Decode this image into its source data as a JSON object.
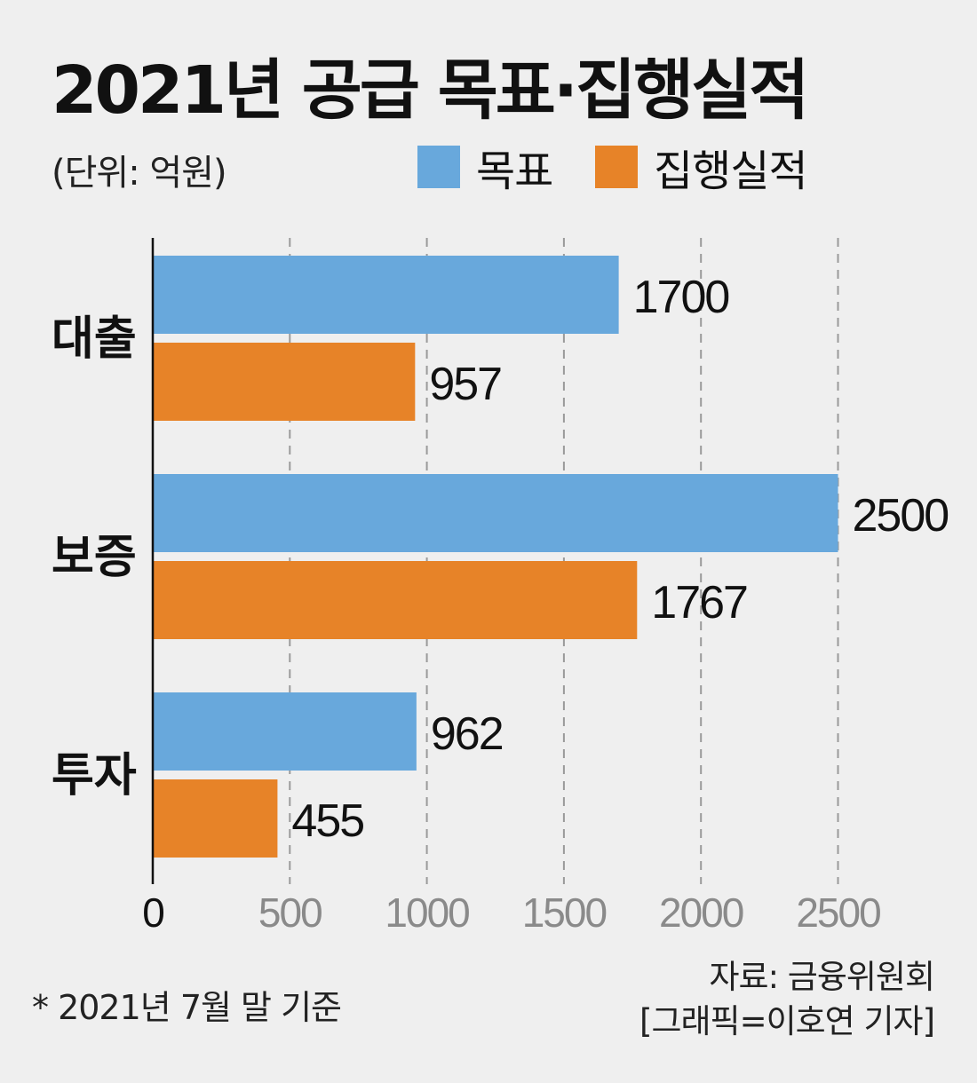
{
  "title": "2021년 공급 목표·집행실적",
  "unit_label": "(단위: 억원)",
  "legend": [
    {
      "label": "목표",
      "color": "#68a8dc"
    },
    {
      "label": "집행실적",
      "color": "#e78328"
    }
  ],
  "chart_data": {
    "type": "bar",
    "orientation": "horizontal",
    "categories": [
      "대출",
      "보증",
      "투자"
    ],
    "series": [
      {
        "name": "목표",
        "color": "#68a8dc",
        "values": [
          1700,
          2500,
          962
        ]
      },
      {
        "name": "집행실적",
        "color": "#e78328",
        "values": [
          957,
          1767,
          455
        ]
      }
    ],
    "xlim": [
      0,
      2500
    ],
    "xticks": [
      "0",
      "500",
      "1000",
      "1500",
      "2000",
      "2500"
    ],
    "grid": true,
    "title": "2021년 공급 목표·집행실적",
    "xlabel": "",
    "ylabel": ""
  },
  "source": "자료: 금융위원회",
  "credit": "[그래픽=이호연 기자]",
  "note": "* 2021년 7월 말 기준"
}
